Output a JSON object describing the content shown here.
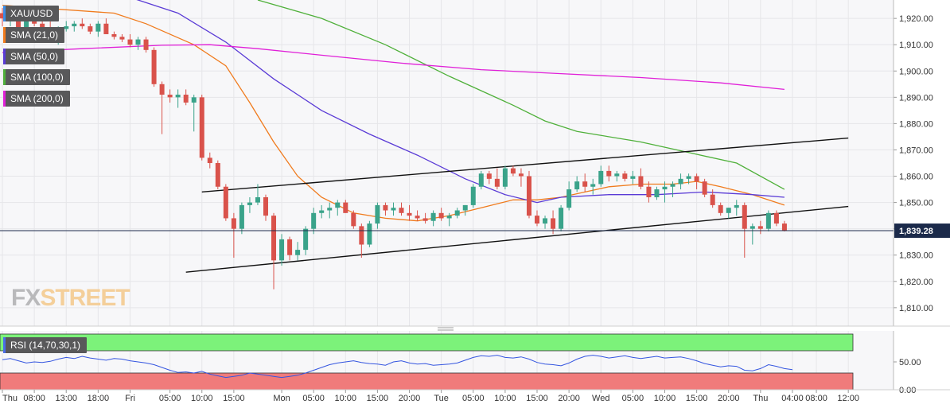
{
  "chart_data": {
    "type": "candlestick",
    "symbol": "XAU/USD",
    "price_axis": {
      "ylim": [
        1803,
        1927
      ],
      "ticks": [
        "1,920.00",
        "1,910.00",
        "1,900.00",
        "1,890.00",
        "1,880.00",
        "1,870.00",
        "1,860.00",
        "1,850.00",
        "1,840.00",
        "1,830.00",
        "1,820.00",
        "1,810.00"
      ],
      "tick_values": [
        1920,
        1910,
        1900,
        1890,
        1880,
        1870,
        1860,
        1850,
        1840,
        1830,
        1820,
        1810
      ],
      "last_price": 1839.28,
      "last_price_label": "1,839.28",
      "grid": true
    },
    "time_axis": {
      "bars": 120,
      "labels": [
        "Thu",
        "08:00",
        "13:00",
        "18:00",
        "Fri",
        "05:00",
        "10:00",
        "15:00",
        "Mon",
        "05:00",
        "10:00",
        "15:00",
        "20:00",
        "Tue",
        "05:00",
        "10:00",
        "15:00",
        "20:00",
        "Wed",
        "05:00",
        "10:00",
        "15:00",
        "20:00",
        "Thu",
        "04:00",
        "08:00",
        "12:00"
      ],
      "positions": [
        0,
        4,
        8,
        12,
        16,
        21,
        25,
        29,
        35,
        39,
        43,
        47,
        51,
        55,
        59,
        63,
        67,
        71,
        75,
        79,
        83,
        87,
        91,
        95,
        99,
        102,
        106
      ]
    },
    "indicators": [
      {
        "name": "SMA (21,0)",
        "color": "#f07b1d",
        "points": [
          [
            0,
            1925
          ],
          [
            14,
            1922
          ],
          [
            18,
            1918
          ],
          [
            24,
            1910
          ],
          [
            28,
            1902
          ],
          [
            31,
            1888
          ],
          [
            34,
            1873
          ],
          [
            37,
            1860
          ],
          [
            40,
            1852
          ],
          [
            44,
            1846
          ],
          [
            48,
            1844
          ],
          [
            52,
            1843
          ],
          [
            56,
            1845
          ],
          [
            60,
            1848
          ],
          [
            64,
            1851
          ],
          [
            67,
            1851
          ],
          [
            70,
            1852
          ],
          [
            73,
            1854
          ],
          [
            76,
            1856
          ],
          [
            80,
            1857
          ],
          [
            84,
            1857
          ],
          [
            87,
            1858
          ],
          [
            90,
            1856
          ],
          [
            94,
            1853
          ],
          [
            98,
            1849
          ]
        ]
      },
      {
        "name": "SMA (50,0)",
        "color": "#5a3bd6",
        "points": [
          [
            0,
            1934
          ],
          [
            14,
            1930
          ],
          [
            22,
            1922
          ],
          [
            28,
            1911
          ],
          [
            34,
            1897
          ],
          [
            40,
            1885
          ],
          [
            46,
            1876
          ],
          [
            52,
            1868
          ],
          [
            58,
            1859
          ],
          [
            63,
            1853
          ],
          [
            67,
            1850
          ],
          [
            70,
            1852
          ],
          [
            76,
            1853
          ],
          [
            82,
            1853
          ],
          [
            88,
            1854
          ],
          [
            94,
            1853
          ],
          [
            98,
            1852
          ]
        ]
      },
      {
        "name": "SMA (100,0)",
        "color": "#4fb03a",
        "points": [
          [
            32,
            1927
          ],
          [
            40,
            1920
          ],
          [
            48,
            1910
          ],
          [
            56,
            1898
          ],
          [
            64,
            1887
          ],
          [
            68,
            1881
          ],
          [
            72,
            1877
          ],
          [
            80,
            1873
          ],
          [
            86,
            1869
          ],
          [
            92,
            1865
          ],
          [
            98,
            1855
          ]
        ]
      },
      {
        "name": "SMA (200,0)",
        "color": "#e020d8",
        "points": [
          [
            0,
            1907
          ],
          [
            10,
            1908.5
          ],
          [
            20,
            1909.8
          ],
          [
            26,
            1910
          ],
          [
            32,
            1908.5
          ],
          [
            40,
            1906
          ],
          [
            50,
            1903
          ],
          [
            60,
            1900.5
          ],
          [
            70,
            1899
          ],
          [
            80,
            1897.5
          ],
          [
            90,
            1895.5
          ],
          [
            98,
            1893
          ]
        ]
      }
    ],
    "trendlines": [
      {
        "name": "upper channel line",
        "color": "#111111",
        "from": [
          25,
          1854
        ],
        "to": [
          106,
          1874.5
        ]
      },
      {
        "name": "lower channel line",
        "color": "#111111",
        "from": [
          23,
          1823.5
        ],
        "to": [
          106,
          1848.5
        ]
      }
    ],
    "candles": [
      [
        1922,
        1924,
        1917,
        1920
      ],
      [
        1920,
        1923,
        1917,
        1921
      ],
      [
        1921,
        1922,
        1913,
        1914
      ],
      [
        1914,
        1920,
        1911,
        1919
      ],
      [
        1919,
        1922,
        1917,
        1918
      ],
      [
        1918,
        1920,
        1914,
        1916
      ],
      [
        1916,
        1919,
        1911,
        1912
      ],
      [
        1912,
        1917,
        1910,
        1916
      ],
      [
        1916,
        1919,
        1915,
        1917
      ],
      [
        1917,
        1919,
        1915,
        1918
      ],
      [
        1918,
        1920,
        1916,
        1917
      ],
      [
        1917,
        1918,
        1914,
        1915
      ],
      [
        1915,
        1919,
        1913,
        1918
      ],
      [
        1918,
        1920,
        1914,
        1914
      ],
      [
        1914,
        1915,
        1912,
        1913
      ],
      [
        1913,
        1914,
        1911,
        1912
      ],
      [
        1912,
        1914,
        1909,
        1910
      ],
      [
        1910,
        1913,
        1908,
        1912
      ],
      [
        1912,
        1913,
        1907,
        1908
      ],
      [
        1908,
        1909,
        1894,
        1895
      ],
      [
        1895,
        1896,
        1876,
        1891
      ],
      [
        1891,
        1893,
        1888,
        1890
      ],
      [
        1890,
        1893,
        1886,
        1891
      ],
      [
        1891,
        1893,
        1887,
        1888
      ],
      [
        1888,
        1891,
        1877,
        1890
      ],
      [
        1890,
        1891,
        1866,
        1867
      ],
      [
        1867,
        1869,
        1863,
        1865
      ],
      [
        1865,
        1866,
        1855,
        1856
      ],
      [
        1856,
        1857,
        1843,
        1844
      ],
      [
        1844,
        1846,
        1829,
        1840
      ],
      [
        1840,
        1850,
        1838,
        1849
      ],
      [
        1849,
        1852,
        1846,
        1850
      ],
      [
        1850,
        1857,
        1849,
        1852
      ],
      [
        1852,
        1853,
        1843,
        1845
      ],
      [
        1845,
        1846,
        1817,
        1828
      ],
      [
        1828,
        1838,
        1826,
        1836
      ],
      [
        1836,
        1837,
        1828,
        1830
      ],
      [
        1830,
        1835,
        1828,
        1832
      ],
      [
        1832,
        1841,
        1830,
        1840
      ],
      [
        1840,
        1848,
        1838,
        1846
      ],
      [
        1846,
        1849,
        1844,
        1847
      ],
      [
        1847,
        1850,
        1844,
        1848
      ],
      [
        1848,
        1851,
        1845,
        1850
      ],
      [
        1850,
        1851,
        1846,
        1846
      ],
      [
        1846,
        1847,
        1840,
        1841
      ],
      [
        1841,
        1842,
        1829,
        1834
      ],
      [
        1834,
        1843,
        1833,
        1842
      ],
      [
        1842,
        1850,
        1840,
        1849
      ],
      [
        1849,
        1850,
        1845,
        1847
      ],
      [
        1847,
        1850,
        1845,
        1848
      ],
      [
        1848,
        1850,
        1845,
        1846
      ],
      [
        1846,
        1849,
        1843,
        1845
      ],
      [
        1845,
        1847,
        1843,
        1844
      ],
      [
        1844,
        1846,
        1842,
        1843
      ],
      [
        1843,
        1847,
        1841,
        1846
      ],
      [
        1846,
        1848,
        1843,
        1844
      ],
      [
        1844,
        1846,
        1841,
        1845
      ],
      [
        1845,
        1848,
        1844,
        1847
      ],
      [
        1847,
        1849,
        1845,
        1849
      ],
      [
        1849,
        1857,
        1848,
        1856
      ],
      [
        1856,
        1862,
        1855,
        1861
      ],
      [
        1861,
        1862,
        1857,
        1859
      ],
      [
        1859,
        1863,
        1855,
        1856
      ],
      [
        1856,
        1864,
        1855,
        1863
      ],
      [
        1863,
        1864,
        1860,
        1861
      ],
      [
        1861,
        1863,
        1856,
        1860
      ],
      [
        1860,
        1862,
        1844,
        1845
      ],
      [
        1845,
        1847,
        1841,
        1842
      ],
      [
        1842,
        1845,
        1840,
        1844
      ],
      [
        1844,
        1847,
        1838,
        1840
      ],
      [
        1840,
        1849,
        1839,
        1848
      ],
      [
        1848,
        1858,
        1847,
        1855
      ],
      [
        1855,
        1860,
        1854,
        1858
      ],
      [
        1858,
        1861,
        1854,
        1856
      ],
      [
        1856,
        1859,
        1853,
        1857
      ],
      [
        1857,
        1864,
        1856,
        1862
      ],
      [
        1862,
        1864,
        1858,
        1860
      ],
      [
        1860,
        1862,
        1858,
        1861
      ],
      [
        1861,
        1862,
        1858,
        1859
      ],
      [
        1859,
        1862,
        1857,
        1860
      ],
      [
        1860,
        1863,
        1855,
        1856
      ],
      [
        1856,
        1858,
        1850,
        1852
      ],
      [
        1852,
        1856,
        1851,
        1855
      ],
      [
        1855,
        1858,
        1850,
        1856
      ],
      [
        1856,
        1858,
        1852,
        1857
      ],
      [
        1857,
        1861,
        1855,
        1859
      ],
      [
        1859,
        1861,
        1857,
        1860
      ],
      [
        1860,
        1861,
        1855,
        1858
      ],
      [
        1858,
        1859,
        1852,
        1853
      ],
      [
        1853,
        1855,
        1848,
        1849
      ],
      [
        1849,
        1850,
        1845,
        1846
      ],
      [
        1846,
        1848,
        1844,
        1848
      ],
      [
        1848,
        1851,
        1845,
        1849
      ],
      [
        1849,
        1850,
        1829,
        1840
      ],
      [
        1840,
        1842,
        1834,
        1841
      ],
      [
        1841,
        1843,
        1838,
        1840
      ],
      [
        1840,
        1847,
        1839,
        1846
      ],
      [
        1846,
        1847,
        1841,
        1842
      ],
      [
        1842,
        1843,
        1839,
        1839.28
      ]
    ],
    "rsi": {
      "name": "RSI (14,70,30,1)",
      "ylim": [
        0,
        100
      ],
      "overbought": 70,
      "oversold": 30,
      "ticks": [
        "50.00",
        "0.00"
      ],
      "tick_values": [
        50,
        0
      ],
      "values": [
        54,
        56,
        52,
        48,
        50,
        49,
        51,
        55,
        58,
        56,
        60,
        57,
        55,
        53,
        56,
        55,
        52,
        50,
        48,
        45,
        40,
        35,
        31,
        32,
        30,
        33,
        28,
        25,
        22,
        24,
        26,
        30,
        28,
        26,
        24,
        22,
        24,
        26,
        30,
        35,
        40,
        45,
        48,
        50,
        52,
        49,
        47,
        46,
        44,
        50,
        52,
        48,
        46,
        47,
        44,
        45,
        46,
        48,
        53,
        58,
        61,
        60,
        62,
        58,
        57,
        59,
        55,
        49,
        46,
        45,
        43,
        48,
        55,
        60,
        62,
        60,
        57,
        59,
        61,
        58,
        56,
        58,
        60,
        57,
        58,
        59,
        56,
        52,
        47,
        44,
        41,
        43,
        42,
        35,
        34,
        38,
        45,
        42,
        38,
        36
      ]
    }
  }
}
